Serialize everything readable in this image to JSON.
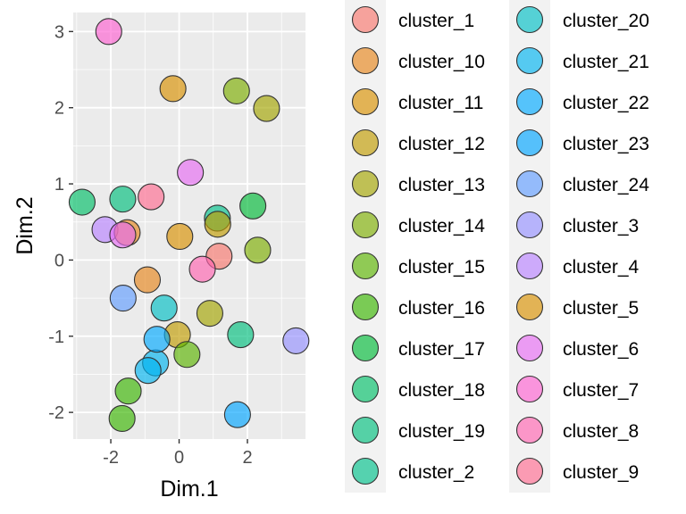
{
  "chart_data": {
    "type": "scatter",
    "xlabel": "Dim.1",
    "ylabel": "Dim.2",
    "xlim": [
      -3.1,
      3.7
    ],
    "ylim": [
      -2.35,
      3.25
    ],
    "x_ticks": [
      -2,
      0,
      2
    ],
    "y_ticks": [
      -2,
      -1,
      0,
      1,
      2,
      3
    ],
    "x_tick_labels": [
      "-2",
      "0",
      "2"
    ],
    "y_tick_labels": [
      "-2",
      "-1",
      "0",
      "1",
      "2",
      "3"
    ],
    "grid": true,
    "legend_position": "right",
    "legend_columns": 2,
    "series": [
      {
        "name": "cluster_1",
        "color": "#F8766D",
        "x": 1.17,
        "y": 0.05
      },
      {
        "name": "cluster_10",
        "color": "#E7861B",
        "x": -0.93,
        "y": -0.26
      },
      {
        "name": "cluster_11",
        "color": "#D89000",
        "x": 0.02,
        "y": 0.31
      },
      {
        "name": "cluster_12",
        "color": "#C09B00",
        "x": -0.05,
        "y": -0.98
      },
      {
        "name": "cluster_13",
        "color": "#A3A500",
        "x": 0.9,
        "y": -0.7
      },
      {
        "name": "cluster_14",
        "color": "#7CAE00",
        "x": 2.3,
        "y": 0.13
      },
      {
        "name": "cluster_15",
        "color": "#5BB300",
        "x": 0.23,
        "y": -1.24
      },
      {
        "name": "cluster_16",
        "color": "#39B600",
        "x": -1.49,
        "y": -1.72
      },
      {
        "name": "cluster_17",
        "color": "#00BA38",
        "x": 2.16,
        "y": 0.71
      },
      {
        "name": "cluster_18",
        "color": "#00BE67",
        "x": -2.84,
        "y": 0.76
      },
      {
        "name": "cluster_19",
        "color": "#00BF7D",
        "x": 1.8,
        "y": -0.98
      },
      {
        "name": "cluster_2",
        "color": "#00C08B",
        "x": 1.12,
        "y": 0.55
      },
      {
        "name": "cluster_20",
        "color": "#00BFC4",
        "x": -0.44,
        "y": -0.63
      },
      {
        "name": "cluster_21",
        "color": "#00B4F0",
        "x": -0.69,
        "y": -1.35
      },
      {
        "name": "cluster_22",
        "color": "#00A9FF",
        "x": -0.65,
        "y": -1.04
      },
      {
        "name": "cluster_23",
        "color": "#00A5FF",
        "x": 1.71,
        "y": -2.03
      },
      {
        "name": "cluster_24",
        "color": "#619CFF",
        "x": -1.64,
        "y": -0.5
      },
      {
        "name": "cluster_3",
        "color": "#9590FF",
        "x": 3.42,
        "y": -1.06
      },
      {
        "name": "cluster_4",
        "color": "#B983FF",
        "x": -2.17,
        "y": 0.4
      },
      {
        "name": "cluster_5",
        "color": "#D89000",
        "x": -0.18,
        "y": 2.25
      },
      {
        "name": "cluster_6",
        "color": "#E76BF3",
        "x": 0.33,
        "y": 1.15
      },
      {
        "name": "cluster_7",
        "color": "#FD61D1",
        "x": -2.06,
        "y": 3.0
      },
      {
        "name": "cluster_8",
        "color": "#FF64B0",
        "x": 0.68,
        "y": -0.12
      },
      {
        "name": "cluster_9",
        "color": "#FF6C91",
        "x": -0.82,
        "y": 0.83
      }
    ],
    "extra_points": [
      {
        "color": "#7CAE00",
        "x": 1.68,
        "y": 2.22
      },
      {
        "color": "#A3A500",
        "x": 2.56,
        "y": 1.99
      },
      {
        "color": "#39B600",
        "x": -1.67,
        "y": -2.08
      },
      {
        "color": "#00BF7D",
        "x": -1.65,
        "y": 0.8
      },
      {
        "color": "#E7861B",
        "x": -1.52,
        "y": 0.36
      },
      {
        "color": "#E76BF3",
        "x": -1.65,
        "y": 0.33
      },
      {
        "color": "#00B4F0",
        "x": -0.91,
        "y": -1.45
      },
      {
        "color": "#C09B00",
        "x": 1.13,
        "y": 0.47
      }
    ]
  }
}
